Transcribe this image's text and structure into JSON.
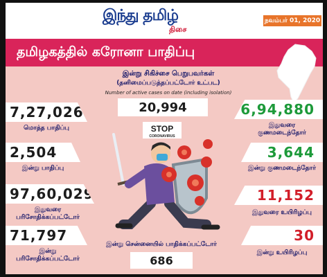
{
  "header": {
    "logo_main": "இந்து தமிழ்",
    "logo_sub": "திசை",
    "date": "நவம்பர் 01, 2020"
  },
  "title": "தமிழகத்தில் கரோனா பாதிப்பு",
  "active": {
    "label": "இன்று சிகிச்சை பெறுபவர்கள்",
    "sub": "(தனிமைப்படுத்தப்பட்டோர் உட்பட)",
    "english": "Number of active cases on date (including isolation)",
    "value": "20,994"
  },
  "left": [
    {
      "value": "7,27,026",
      "label": "மொத்த பாதிப்பு"
    },
    {
      "value": "2,504",
      "label": "இன்று பாதிப்பு"
    },
    {
      "value": "97,60,029",
      "label": "இதுவரை பரிசோதிக்கப்பட்டோர்"
    },
    {
      "value": "71,797",
      "label": "இன்று பரிசோதிக்கப்பட்டோர்"
    }
  ],
  "right": [
    {
      "value": "6,94,880",
      "label": "இதுவரை குணமடைந்தோர்"
    },
    {
      "value": "3,644",
      "label": "இன்று குணமடைந்தோர்"
    },
    {
      "value": "11,152",
      "label": "இதுவரை உயிரிழப்பு"
    },
    {
      "value": "30",
      "label": "இன்று உயிரிழப்பு"
    }
  ],
  "chennai": {
    "label": "இன்று சென்னையில் பாதிக்கப்பட்டோர்",
    "value": "686"
  },
  "stop_sign": {
    "main": "STOP",
    "sub": "CORONAVIRUS"
  },
  "colors": {
    "title_bar": "#d9245a",
    "background": "#f4c9c4",
    "green": "#1d9a3a",
    "red": "#d21f2a",
    "navy": "#1b1b6b"
  },
  "icons": {
    "map": "tamil-nadu-map",
    "illustration": "person-fighting-virus-with-sword-and-shield"
  }
}
